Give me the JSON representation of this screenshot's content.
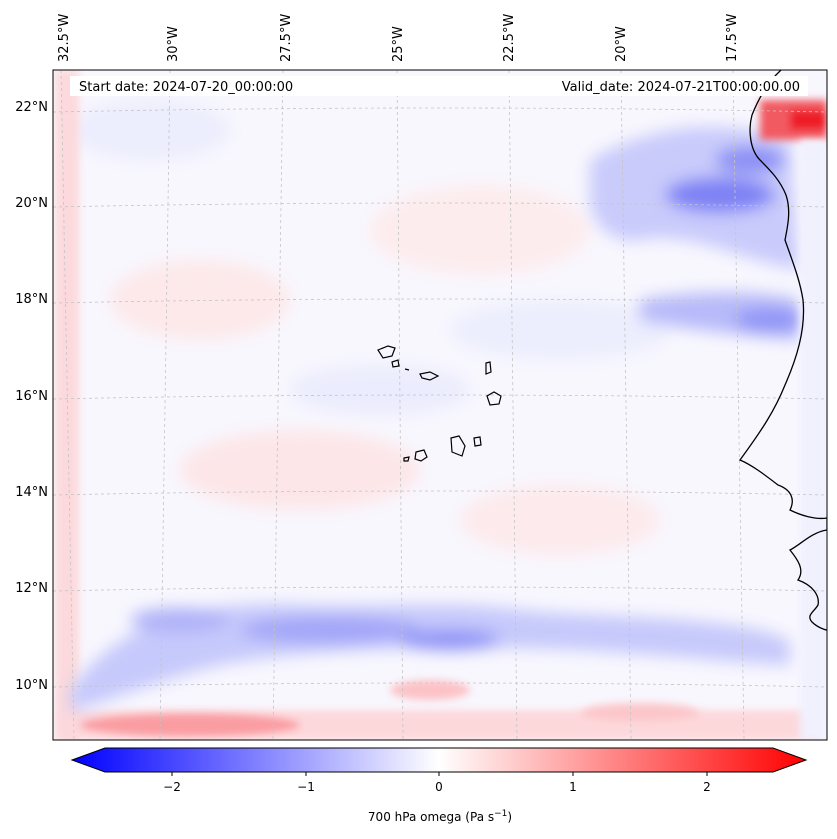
{
  "map": {
    "start_label": "Start date: 2024-07-20_00:00:00",
    "valid_label": "Valid_date: 2024-07-21T00:00:00.00",
    "lon_labels": [
      "32.5°W",
      "30°W",
      "27.5°W",
      "25°W",
      "22.5°W",
      "20°W",
      "17.5°W"
    ],
    "lat_labels": [
      "22°N",
      "20°N",
      "18°N",
      "16°N",
      "14°N",
      "12°N",
      "10°N"
    ],
    "extent": {
      "lon_min": -33.0,
      "lon_max": -15.6,
      "lat_min": 8.9,
      "lat_max": 22.8
    },
    "projection": "Lambert conformal",
    "colors": {
      "positive": "#ff0000",
      "negative": "#0000ff",
      "zero": "#ffffff",
      "coast": "#000000",
      "grid": "#bbbbbb"
    }
  },
  "colorbar": {
    "tick_labels": [
      "−2",
      "−1",
      "0",
      "1",
      "2"
    ],
    "ticks": [
      -2,
      -1,
      0,
      1,
      2
    ],
    "range": [
      -2.6,
      2.6
    ],
    "extend": "both",
    "cmap": "bwr",
    "label": "700 hPa omega (Pa s",
    "label_sup": "−1",
    "label_end": ")"
  }
}
